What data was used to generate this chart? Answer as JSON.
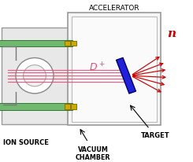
{
  "bg_color": "#ffffff",
  "title": "ACCELERATOR",
  "ion_source_label": "ION SOURCE",
  "vacuum_chamber_label": "VACUUM\nCHAMBER",
  "target_label": "TARGET",
  "d_plus_label": "D",
  "d_plus_super": "+",
  "n_label": "n",
  "beam_color": "#e0507a",
  "neutron_color": "#cc0000",
  "target_color": "#2020dd",
  "green_bar_color": "#70b870",
  "box_edge_color": "#999999",
  "box_face_color": "#f0f0f0",
  "ion_box_face": "#e8e8e8",
  "yellow_color": "#ccaa00",
  "figsize": [
    2.45,
    2.07
  ],
  "dpi": 100
}
